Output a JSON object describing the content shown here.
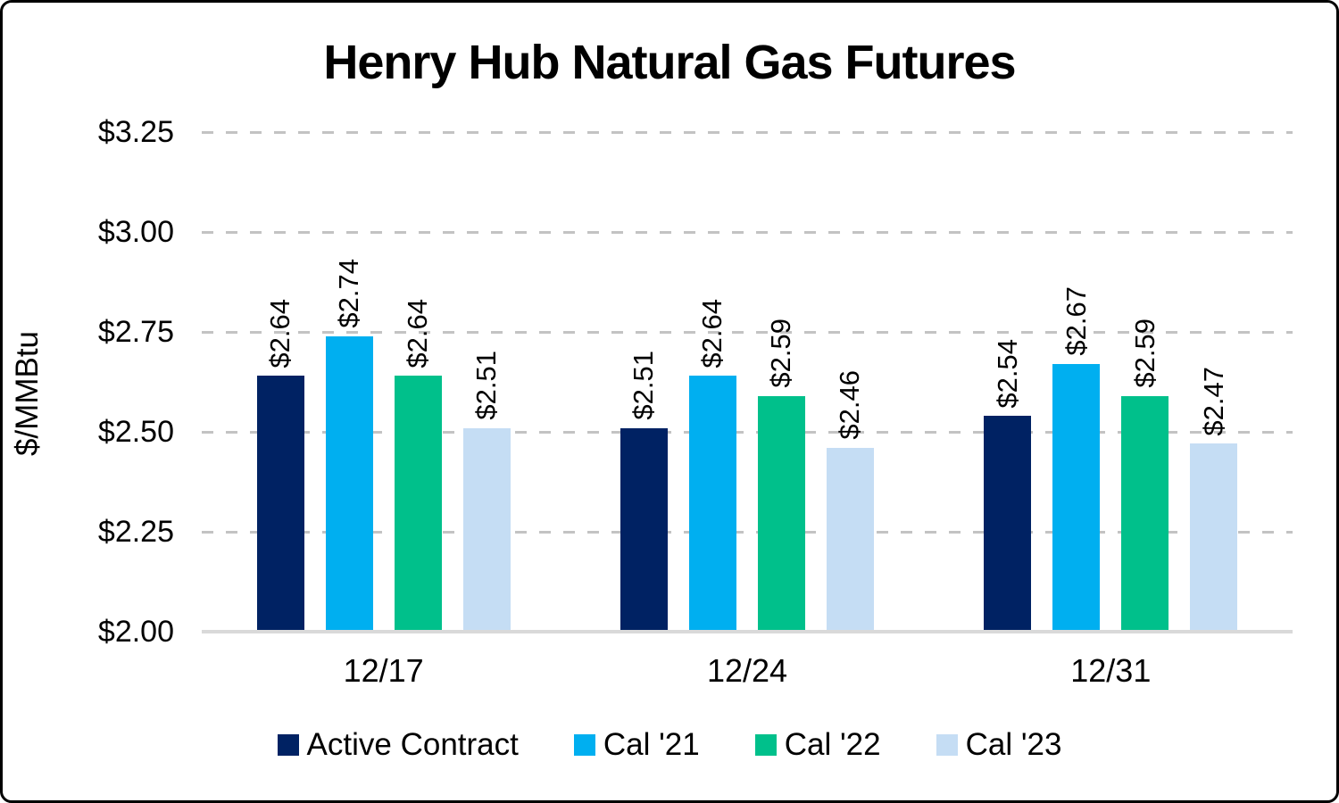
{
  "chart_data": {
    "type": "bar",
    "title": "Henry Hub Natural Gas Futures",
    "ylabel": "$/MMBtu",
    "xlabel": "",
    "categories": [
      "12/17",
      "12/24",
      "12/31"
    ],
    "series": [
      {
        "name": "Active Contract",
        "color": "#002263",
        "values": [
          2.64,
          2.51,
          2.54
        ],
        "data_labels": [
          "$2.64",
          "$2.51",
          "$2.54"
        ]
      },
      {
        "name": "Cal '21",
        "color": "#00AFF0",
        "values": [
          2.74,
          2.64,
          2.67
        ],
        "data_labels": [
          "$2.74",
          "$2.64",
          "$2.67"
        ]
      },
      {
        "name": "Cal '22",
        "color": "#00C08B",
        "values": [
          2.64,
          2.59,
          2.59
        ],
        "data_labels": [
          "$2.64",
          "$2.59",
          "$2.59"
        ]
      },
      {
        "name": "Cal '23",
        "color": "#C5DDF4",
        "values": [
          2.51,
          2.46,
          2.47
        ],
        "data_labels": [
          "$2.51",
          "$2.46",
          "$2.47"
        ]
      }
    ],
    "ylim": [
      2.0,
      3.25
    ],
    "y_ticks": [
      {
        "value": 3.25,
        "label": "$3.25"
      },
      {
        "value": 3.0,
        "label": "$3.00"
      },
      {
        "value": 2.75,
        "label": "$2.75"
      },
      {
        "value": 2.5,
        "label": "$2.50"
      },
      {
        "value": 2.25,
        "label": "$2.25"
      },
      {
        "value": 2.0,
        "label": "$2.00"
      }
    ],
    "grid": "horizontal-dashed",
    "legend_position": "bottom",
    "data_label_rotation": 90,
    "colors": {
      "gridline": "#C3C3C3",
      "axis_line": "#D9D9D9",
      "text": "#000000",
      "background": "#FFFFFF",
      "frame_border": "#000000"
    }
  }
}
